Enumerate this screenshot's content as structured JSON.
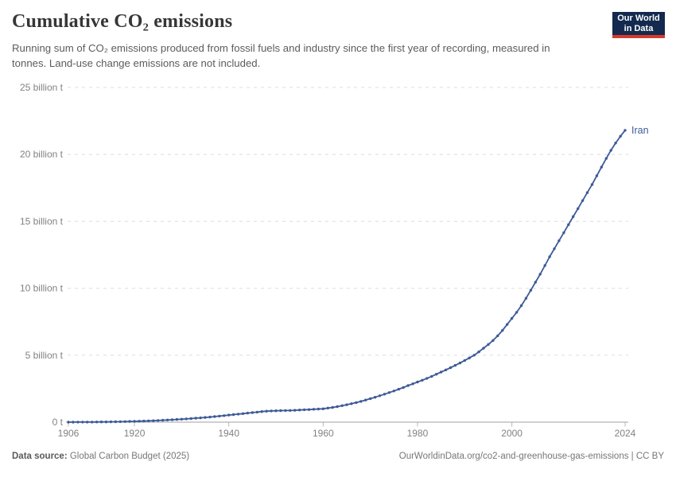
{
  "header": {
    "title": "Cumulative CO₂ emissions",
    "subtitle": "Running sum of CO₂ emissions produced from fossil fuels and industry since the first year of recording, measured in tonnes. Land-use change emissions are not included.",
    "logo": {
      "line1": "Our World",
      "line2": "in Data"
    }
  },
  "footer": {
    "source_label": "Data source:",
    "source_value": " Global Carbon Budget (2025)",
    "attribution": "OurWorldinData.org/co2-and-greenhouse-gas-emissions | CC BY"
  },
  "colors": {
    "series": "#3d5a96",
    "grid": "#dedede",
    "baseline": "#a1a1a1",
    "tick": "#b8b8b8",
    "axis_text": "#828282",
    "logo_bg": "#132a4e",
    "logo_accent": "#d8392e"
  },
  "chart_data": {
    "type": "line",
    "title": "Cumulative CO₂ emissions",
    "xlabel": "",
    "ylabel": "",
    "xlim": [
      1906,
      2024
    ],
    "ylim": [
      0,
      25
    ],
    "grid": true,
    "marker": "circle",
    "legend_position": "end-of-line",
    "x_ticks": [
      1906,
      1920,
      1940,
      1960,
      1980,
      2000,
      2024
    ],
    "y_ticks": [
      {
        "value": 0,
        "label": "0 t"
      },
      {
        "value": 5,
        "label": "5 billion t"
      },
      {
        "value": 10,
        "label": "10 billion t"
      },
      {
        "value": 15,
        "label": "15 billion t"
      },
      {
        "value": 20,
        "label": "20 billion t"
      },
      {
        "value": 25,
        "label": "25 billion t"
      }
    ],
    "unit": "billion tonnes",
    "series": [
      {
        "name": "Iran",
        "color": "#3d5a96",
        "start_year": 1906,
        "end_year": 2024,
        "values": [
          0.001,
          0.002,
          0.003,
          0.005,
          0.006,
          0.008,
          0.011,
          0.015,
          0.019,
          0.024,
          0.03,
          0.037,
          0.044,
          0.052,
          0.061,
          0.071,
          0.082,
          0.095,
          0.109,
          0.124,
          0.141,
          0.159,
          0.179,
          0.2,
          0.222,
          0.245,
          0.269,
          0.294,
          0.32,
          0.348,
          0.38,
          0.414,
          0.45,
          0.489,
          0.528,
          0.563,
          0.599,
          0.637,
          0.676,
          0.712,
          0.75,
          0.788,
          0.82,
          0.84,
          0.852,
          0.86,
          0.865,
          0.872,
          0.885,
          0.908,
          0.925,
          0.94,
          0.96,
          0.98,
          1.0,
          1.05,
          1.1,
          1.16,
          1.23,
          1.3,
          1.38,
          1.46,
          1.55,
          1.65,
          1.76,
          1.86,
          1.97,
          2.09,
          2.21,
          2.33,
          2.46,
          2.59,
          2.73,
          2.86,
          3.0,
          3.13,
          3.27,
          3.42,
          3.58,
          3.74,
          3.9,
          4.07,
          4.24,
          4.42,
          4.61,
          4.8,
          5.0,
          5.25,
          5.52,
          5.8,
          6.1,
          6.45,
          6.85,
          7.3,
          7.75,
          8.2,
          8.7,
          9.25,
          9.85,
          10.45,
          11.05,
          11.7,
          12.35,
          12.95,
          13.55,
          14.15,
          14.75,
          15.35,
          15.95,
          16.55,
          17.15,
          17.75,
          18.4,
          19.05,
          19.7,
          20.3,
          20.85,
          21.35,
          21.8
        ]
      }
    ]
  }
}
